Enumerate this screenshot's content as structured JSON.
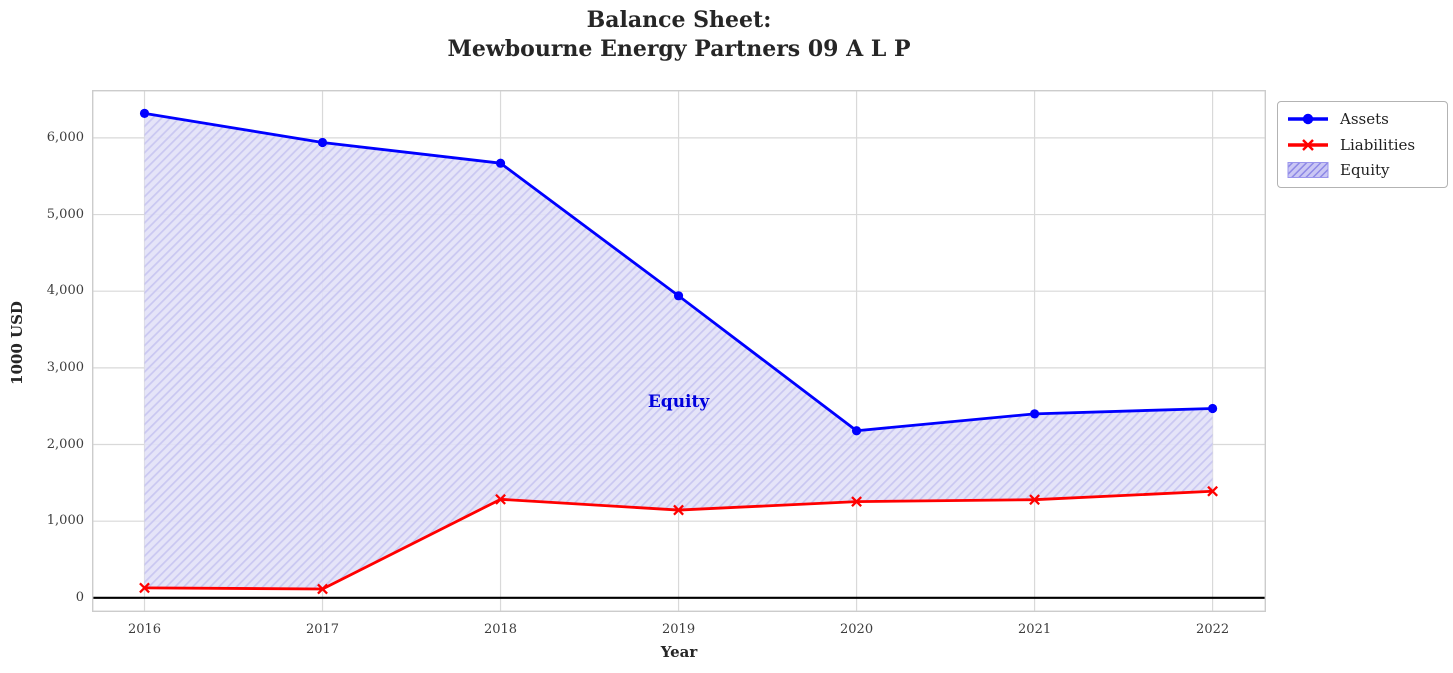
{
  "header": {
    "title_line1": "Balance Sheet:",
    "title_line2": "Mewbourne Energy Partners 09 A L P"
  },
  "chart_data": {
    "type": "line",
    "title": "Balance Sheet: Mewbourne Energy Partners 09 A L P",
    "xlabel": "Year",
    "ylabel": "1000 USD",
    "x": [
      2016,
      2017,
      2018,
      2019,
      2020,
      2021,
      2022
    ],
    "x_tick_labels": [
      "2016",
      "2017",
      "2018",
      "2019",
      "2020",
      "2021",
      "2022"
    ],
    "series": [
      {
        "name": "Assets",
        "color": "#0000ff",
        "marker": "circle",
        "values": [
          6320,
          5940,
          5670,
          3940,
          2180,
          2400,
          2470
        ]
      },
      {
        "name": "Liabilities",
        "color": "#ff0000",
        "marker": "x",
        "values": [
          130,
          115,
          1285,
          1145,
          1255,
          1280,
          1390
        ]
      }
    ],
    "equity_area": {
      "name": "Equity",
      "fill": "hatched area between Assets and Liabilities",
      "annotation": {
        "text": "Equity",
        "x": 2019,
        "y": 2560,
        "color": "#0000dd"
      }
    },
    "yticks": [
      0,
      1000,
      2000,
      3000,
      4000,
      5000,
      6000
    ],
    "ytick_labels": [
      "0",
      "1,000",
      "2,000",
      "3,000",
      "4,000",
      "5,000",
      "6,000"
    ],
    "xlim": [
      2015.705,
      2022.3
    ],
    "ylim": [
      -185,
      6625
    ],
    "grid": true,
    "zero_line": true,
    "legend_position": "outside upper right"
  },
  "colors": {
    "grid": "#d9d9d9",
    "axes_border": "#cccccc",
    "fill_bg": "#e3e2f8",
    "fill_hatch": "#c9c7f1",
    "legend_patch_bg": "#cac7f4",
    "legend_patch_hatch": "#8d88e6",
    "legend_patch_border": "#9a95ec",
    "zero_line": "#000000",
    "title_text": "#262626",
    "tick_text": "#3d3d3d"
  }
}
